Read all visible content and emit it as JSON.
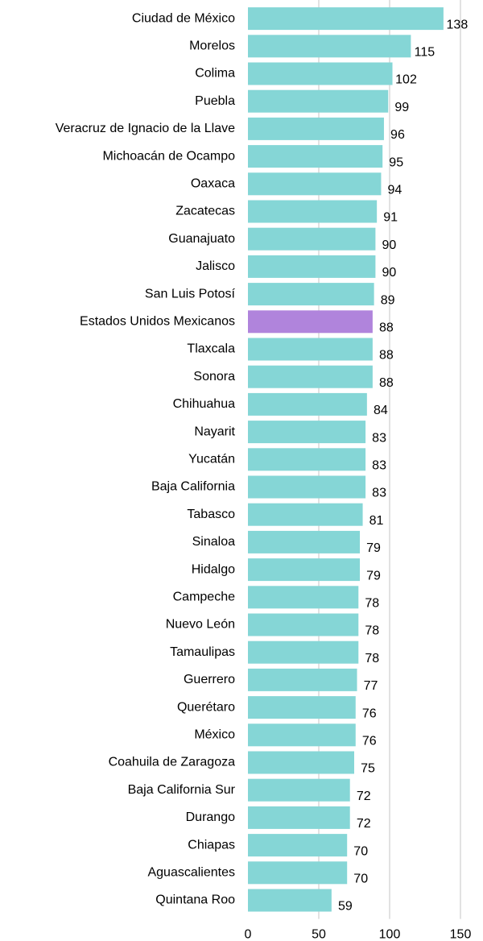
{
  "chart_data": {
    "type": "bar",
    "orientation": "horizontal",
    "title": "",
    "xlabel": "",
    "ylabel": "",
    "xlim": [
      0,
      150
    ],
    "xticks": [
      0,
      50,
      100,
      150
    ],
    "grid": true,
    "colors": {
      "bar": "#85d6d6",
      "highlight": "#b084dc",
      "gridline": "#d9d9d9"
    },
    "highlight_category": "Estados Unidos Mexicanos",
    "categories": [
      "Ciudad de México",
      "Morelos",
      "Colima",
      "Puebla",
      "Veracruz de Ignacio de la Llave",
      "Michoacán de Ocampo",
      "Oaxaca",
      "Zacatecas",
      "Guanajuato",
      "Jalisco",
      "San Luis Potosí",
      "Estados Unidos Mexicanos",
      "Tlaxcala",
      "Sonora",
      "Chihuahua",
      "Nayarit",
      "Yucatán",
      "Baja California",
      "Tabasco",
      "Sinaloa",
      "Hidalgo",
      "Campeche",
      "Nuevo León",
      "Tamaulipas",
      "Guerrero",
      "Querétaro",
      "México",
      "Coahuila de Zaragoza",
      "Baja California Sur",
      "Durango",
      "Chiapas",
      "Aguascalientes",
      "Quintana Roo"
    ],
    "values": [
      138,
      115,
      102,
      99,
      96,
      95,
      94,
      91,
      90,
      90,
      89,
      88,
      88,
      88,
      84,
      83,
      83,
      83,
      81,
      79,
      79,
      78,
      78,
      78,
      77,
      76,
      76,
      75,
      72,
      72,
      70,
      70,
      59
    ]
  }
}
